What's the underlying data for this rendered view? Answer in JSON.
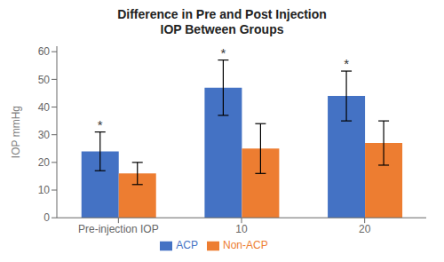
{
  "chart_data": {
    "type": "bar",
    "title": "Difference in Pre and Post Injection\nIOP Between Groups",
    "ylabel": "IOP mmHg",
    "categories": [
      "Pre-injection IOP",
      "10",
      "20"
    ],
    "series": [
      {
        "name": "ACP",
        "color": "#4472C4",
        "values": [
          24,
          47,
          44
        ],
        "errors": [
          7,
          10,
          9
        ]
      },
      {
        "name": "Non-ACP",
        "color": "#ED7D31",
        "values": [
          16,
          25,
          27
        ],
        "errors": [
          4,
          9,
          8
        ]
      }
    ],
    "ylim": [
      0,
      62
    ],
    "yticks": [
      0,
      10,
      20,
      30,
      40,
      50,
      60
    ],
    "grid": false,
    "legend": "bottom",
    "annotations": [
      {
        "text": "*",
        "series": "ACP",
        "category": "Pre-injection IOP"
      },
      {
        "text": "*",
        "series": "ACP",
        "category": "10"
      },
      {
        "text": "*",
        "series": "ACP",
        "category": "20"
      }
    ]
  }
}
